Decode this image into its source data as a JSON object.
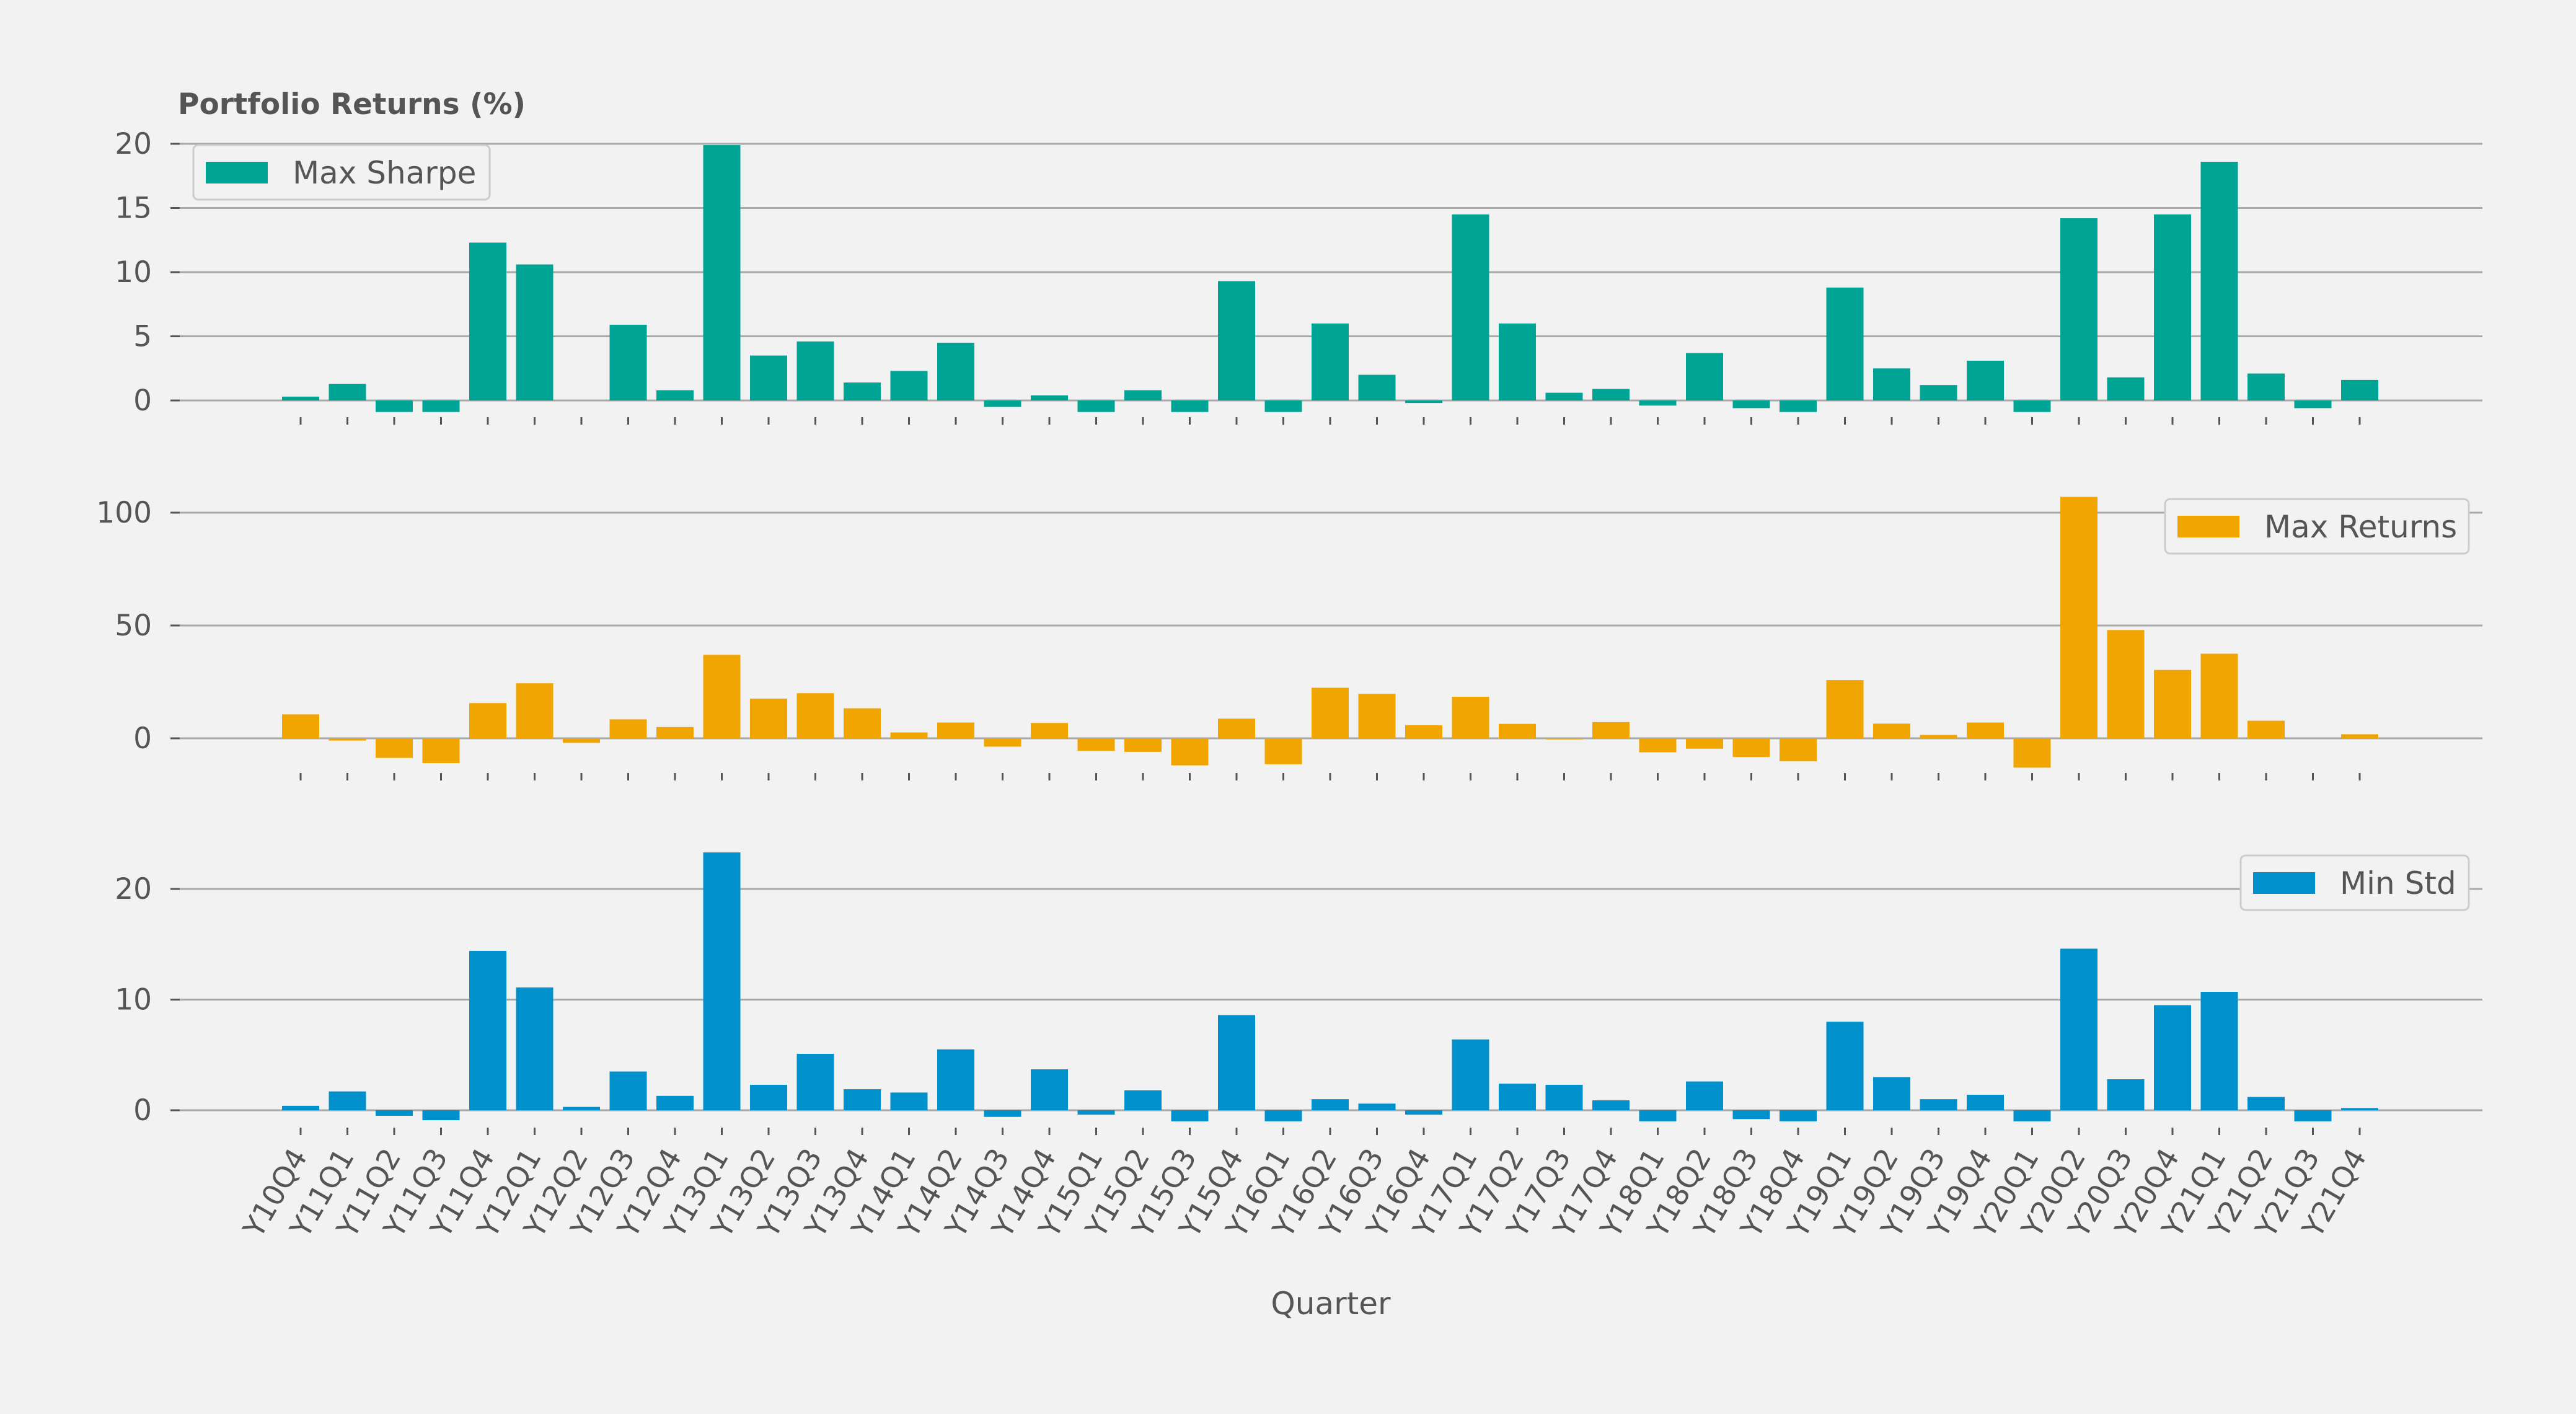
{
  "chart_data": {
    "type": "bar",
    "title": "Portfolio Returns (%)",
    "xlabel": "Quarter",
    "categories": [
      "Y10Q4",
      "Y11Q1",
      "Y11Q2",
      "Y11Q3",
      "Y11Q4",
      "Y12Q1",
      "Y12Q2",
      "Y12Q3",
      "Y12Q4",
      "Y13Q1",
      "Y13Q2",
      "Y13Q3",
      "Y13Q4",
      "Y14Q1",
      "Y14Q2",
      "Y14Q3",
      "Y14Q4",
      "Y15Q1",
      "Y15Q2",
      "Y15Q3",
      "Y15Q4",
      "Y16Q1",
      "Y16Q2",
      "Y16Q3",
      "Y16Q4",
      "Y17Q1",
      "Y17Q2",
      "Y17Q3",
      "Y17Q4",
      "Y18Q1",
      "Y18Q2",
      "Y18Q3",
      "Y18Q4",
      "Y19Q1",
      "Y19Q2",
      "Y19Q3",
      "Y19Q4",
      "Y20Q1",
      "Y20Q2",
      "Y20Q3",
      "Y20Q4",
      "Y21Q1",
      "Y21Q2",
      "Y21Q3",
      "Y21Q4"
    ],
    "grid": true,
    "panels": [
      {
        "name": "Max Sharpe",
        "color": "#00a495",
        "legend_position": "top-left",
        "yticks": [
          0,
          5,
          10,
          15,
          20
        ],
        "ylim": [
          -2,
          20
        ],
        "values": [
          0.3,
          1.3,
          -0.9,
          -0.9,
          12.3,
          10.6,
          0.0,
          5.9,
          0.8,
          19.9,
          3.5,
          4.6,
          1.4,
          2.3,
          4.5,
          -0.5,
          0.4,
          -0.9,
          0.8,
          -0.9,
          9.3,
          -0.9,
          6.0,
          2.0,
          -0.2,
          14.5,
          6.0,
          0.6,
          0.9,
          -0.4,
          3.7,
          -0.6,
          -0.9,
          8.8,
          2.5,
          1.2,
          3.1,
          -0.9,
          14.2,
          1.8,
          14.5,
          18.6,
          2.1,
          -0.6,
          1.6
        ]
      },
      {
        "name": "Max Returns",
        "color": "#f0a500",
        "legend_position": "top-right",
        "yticks": [
          0,
          50,
          100
        ],
        "ylim": [
          -15,
          107
        ],
        "values": [
          10.6,
          -1.0,
          -8.7,
          -11.0,
          15.6,
          24.4,
          -2.0,
          8.4,
          5.0,
          37.0,
          17.6,
          20.0,
          13.3,
          2.6,
          7.0,
          -3.7,
          6.8,
          -5.5,
          -6.0,
          -12.0,
          8.7,
          -11.5,
          22.4,
          19.7,
          5.8,
          18.4,
          6.4,
          -0.5,
          7.2,
          -6.2,
          -4.6,
          -8.3,
          -10.2,
          25.8,
          6.5,
          1.5,
          7.0,
          -13.0,
          107.0,
          48.0,
          30.3,
          37.5,
          7.8,
          0.0,
          1.8
        ]
      },
      {
        "name": "Min Std",
        "color": "#0090cc",
        "legend_position": "top-right",
        "yticks": [
          0,
          10,
          20
        ],
        "ylim": [
          -2,
          23.4
        ],
        "values": [
          0.4,
          1.7,
          -0.5,
          -0.9,
          14.4,
          11.1,
          0.3,
          3.5,
          1.3,
          23.3,
          2.3,
          5.1,
          1.9,
          1.6,
          5.5,
          -0.6,
          3.7,
          -0.4,
          1.8,
          -1.0,
          8.6,
          -1.0,
          1.0,
          0.6,
          -0.4,
          6.4,
          2.4,
          2.3,
          0.9,
          -1.0,
          2.6,
          -0.8,
          -1.0,
          8.0,
          3.0,
          1.0,
          1.4,
          -1.0,
          14.6,
          2.8,
          9.5,
          10.7,
          1.2,
          -1.0,
          0.2
        ]
      }
    ]
  }
}
